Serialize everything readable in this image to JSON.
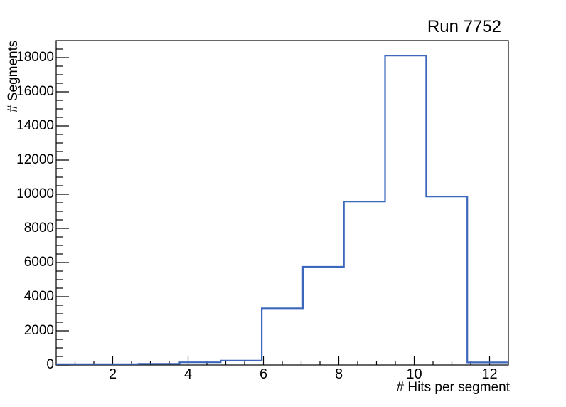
{
  "title": "Run 7752",
  "chart_data": {
    "type": "histogram-step",
    "title": "Run 7752",
    "xlabel": "# Hits per segment",
    "ylabel": "# Segments",
    "xlim": [
      0.5,
      12.5
    ],
    "ylim": [
      0,
      19000
    ],
    "bin_edges": [
      0.5,
      1.5909,
      2.6818,
      3.7727,
      4.8636,
      5.9545,
      7.0455,
      8.1364,
      9.2273,
      10.3182,
      11.4091,
      12.5
    ],
    "counts": [
      50,
      50,
      70,
      160,
      260,
      3320,
      5750,
      9580,
      18120,
      9870,
      150
    ],
    "x_major_ticks": [
      2,
      4,
      6,
      8,
      10,
      12
    ],
    "x_minor_step": 0.5,
    "x_minor_range": [
      1,
      12
    ],
    "y_major_ticks": [
      0,
      2000,
      4000,
      6000,
      8000,
      10000,
      12000,
      14000,
      16000,
      18000
    ],
    "y_minor_step": 500,
    "y_minor_range": [
      500,
      18500
    ],
    "grid": "off",
    "legend": "none",
    "line_color": "#3b67bd",
    "axis_color": "#000000",
    "background_color": "#ffffff"
  }
}
